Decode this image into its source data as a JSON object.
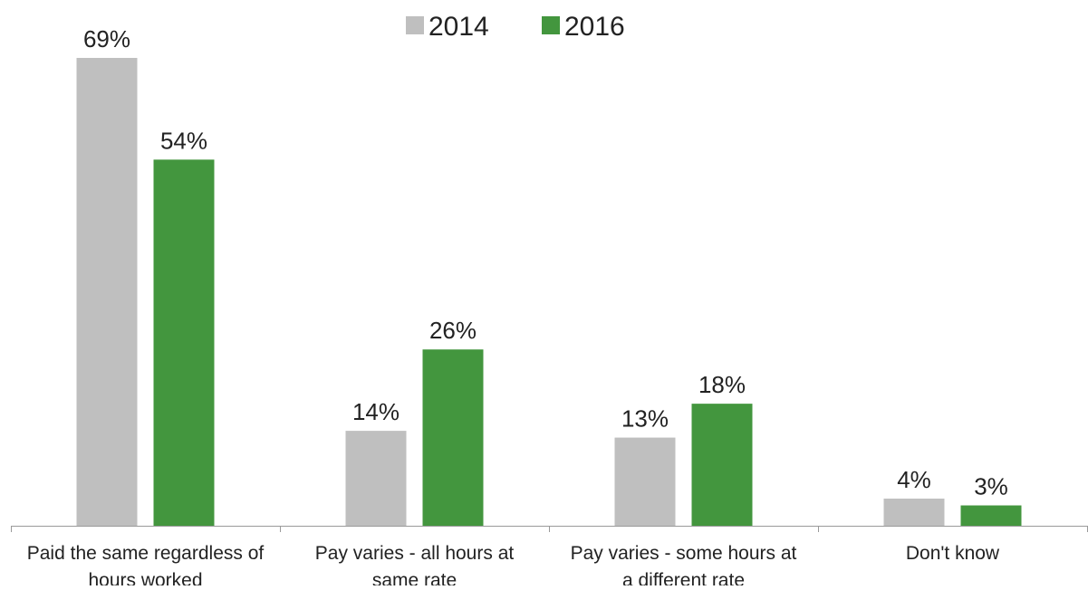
{
  "chart_data": {
    "type": "bar",
    "categories": [
      [
        "Paid the same regardless of",
        "hours worked"
      ],
      [
        "Pay varies - all hours at",
        "same rate"
      ],
      [
        "Pay varies - some hours at",
        "a different rate"
      ],
      [
        "Don't know"
      ]
    ],
    "series": [
      {
        "name": "2014",
        "color": "#bfbfbf",
        "values": [
          69,
          14,
          13,
          4
        ],
        "labels": [
          "69%",
          "14%",
          "13%",
          "4%"
        ]
      },
      {
        "name": "2016",
        "color": "#43963e",
        "values": [
          54,
          26,
          18,
          3
        ],
        "labels": [
          "54%",
          "26%",
          "18%",
          "3%"
        ]
      }
    ],
    "ylim": [
      0,
      69
    ],
    "grid": false,
    "legend_position": "top-center",
    "title": "",
    "xlabel": "",
    "ylabel": ""
  }
}
